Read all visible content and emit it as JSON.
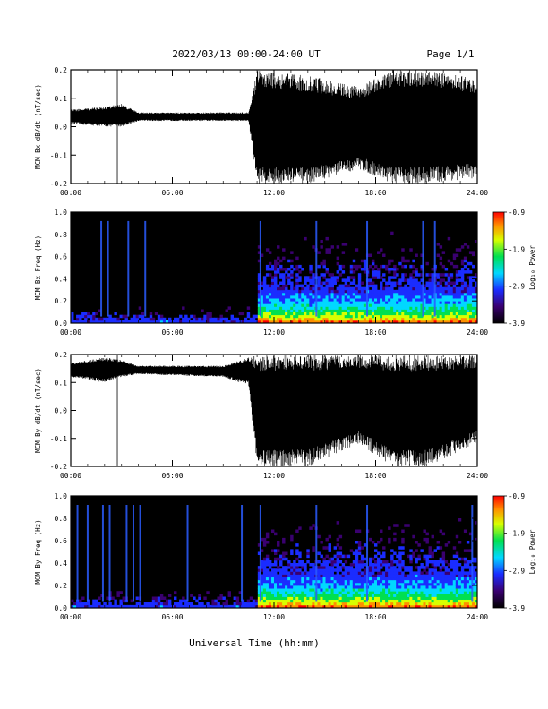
{
  "header": {
    "title": "2022/03/13  00:00-24:00 UT",
    "page": "Page 1/1"
  },
  "xlabel": "Universal Time (hh:mm)",
  "time_ticks": [
    "00:00",
    "06:00",
    "12:00",
    "18:00",
    "24:00"
  ],
  "colorbar_label": "Log₁₀ Power",
  "colorbar_ticks": [
    "-0.9",
    "-1.9",
    "-2.9",
    "-3.9"
  ],
  "chart_data": [
    {
      "id": "bx_dbdt",
      "type": "line",
      "ylabel": "MCM Bx dB/dt (nT/sec)",
      "xlim": [
        0,
        24
      ],
      "ylim": [
        -0.2,
        0.2
      ],
      "yticks": [
        "0.2",
        "0.1",
        "0.0",
        "-0.1",
        "-0.2"
      ],
      "spikes_down_hours": [
        2.75
      ],
      "envelope": [
        {
          "x": 0.0,
          "lo": 0.01,
          "hi": 0.06
        },
        {
          "x": 2.0,
          "lo": 0.0,
          "hi": 0.07
        },
        {
          "x": 3.0,
          "lo": 0.0,
          "hi": 0.08
        },
        {
          "x": 4.0,
          "lo": 0.02,
          "hi": 0.05
        },
        {
          "x": 10.5,
          "lo": 0.02,
          "hi": 0.05
        },
        {
          "x": 11.0,
          "lo": -0.2,
          "hi": 0.2
        },
        {
          "x": 14.0,
          "lo": -0.2,
          "hi": 0.18
        },
        {
          "x": 17.0,
          "lo": -0.15,
          "hi": 0.14
        },
        {
          "x": 19.0,
          "lo": -0.2,
          "hi": 0.2
        },
        {
          "x": 21.0,
          "lo": -0.2,
          "hi": 0.2
        },
        {
          "x": 24.0,
          "lo": -0.18,
          "hi": 0.17
        }
      ]
    },
    {
      "id": "bx_spec",
      "type": "heatmap",
      "ylabel": "MCM Bx Freq (Hz)",
      "xlim": [
        0,
        24
      ],
      "ylim": [
        0,
        1
      ],
      "yticks": [
        "1.0",
        "0.8",
        "0.6",
        "0.4",
        "0.2",
        "0.0"
      ],
      "zlim": [
        -3.9,
        -0.9
      ],
      "streak_hours": [
        1.8,
        2.2,
        3.4,
        4.4,
        11.2,
        14.5,
        17.5,
        20.8,
        21.5
      ]
    },
    {
      "id": "by_dbdt",
      "type": "line",
      "ylabel": "MCM By dB/dt (nT/sec)",
      "xlim": [
        0,
        24
      ],
      "ylim": [
        -0.2,
        0.2
      ],
      "yticks": [
        "0.2",
        "0.1",
        "0.0",
        "-0.1",
        "-0.2"
      ],
      "spikes_down_hours": [
        2.75
      ],
      "envelope": [
        {
          "x": 0.0,
          "lo": 0.12,
          "hi": 0.17
        },
        {
          "x": 2.0,
          "lo": 0.1,
          "hi": 0.19
        },
        {
          "x": 3.0,
          "lo": 0.12,
          "hi": 0.18
        },
        {
          "x": 4.0,
          "lo": 0.13,
          "hi": 0.16
        },
        {
          "x": 9.0,
          "lo": 0.12,
          "hi": 0.16
        },
        {
          "x": 10.5,
          "lo": 0.09,
          "hi": 0.19
        },
        {
          "x": 11.0,
          "lo": -0.2,
          "hi": 0.2
        },
        {
          "x": 14.0,
          "lo": -0.2,
          "hi": 0.2
        },
        {
          "x": 17.0,
          "lo": -0.12,
          "hi": 0.2
        },
        {
          "x": 19.0,
          "lo": -0.2,
          "hi": 0.2
        },
        {
          "x": 21.0,
          "lo": -0.2,
          "hi": 0.2
        },
        {
          "x": 24.0,
          "lo": -0.12,
          "hi": 0.2
        }
      ]
    },
    {
      "id": "by_spec",
      "type": "heatmap",
      "ylabel": "MCM By Freq (Hz)",
      "xlim": [
        0,
        24
      ],
      "ylim": [
        0,
        1
      ],
      "yticks": [
        "1.0",
        "0.8",
        "0.6",
        "0.4",
        "0.2",
        "0.0"
      ],
      "zlim": [
        -3.9,
        -0.9
      ],
      "streak_hours": [
        0.4,
        1.0,
        1.9,
        2.3,
        3.3,
        3.7,
        4.1,
        6.9,
        10.1,
        11.2,
        14.5,
        17.5,
        23.7
      ]
    }
  ]
}
